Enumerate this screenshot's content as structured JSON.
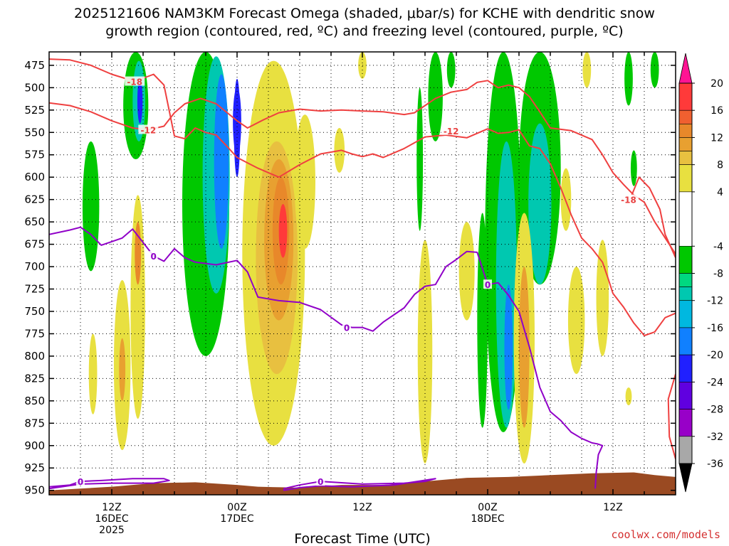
{
  "chart_data": {
    "type": "heatmap",
    "title_line1": "2025121606 NAM3KM Forecast Omega (shaded, μbar/s) for KCHE with dendritic snow",
    "title_line2": "growth region (contoured, red, ºC) and freezing level (contoured, purple, ºC)",
    "xlabel": "Forecast Time (UTC)",
    "credit": "coolwx.com/models",
    "x_range_hours": [
      0,
      60
    ],
    "y_range_hPa": [
      460,
      955
    ],
    "y_ticks": [
      475,
      500,
      525,
      550,
      575,
      600,
      625,
      650,
      675,
      700,
      725,
      750,
      775,
      800,
      825,
      850,
      875,
      900,
      925,
      950
    ],
    "x_ticks": [
      {
        "hour": 6,
        "l1": "12Z",
        "l2": "16DEC",
        "l3": "2025"
      },
      {
        "hour": 18,
        "l1": "00Z",
        "l2": "17DEC",
        "l3": ""
      },
      {
        "hour": 30,
        "l1": "12Z",
        "l2": "",
        "l3": ""
      },
      {
        "hour": 42,
        "l1": "00Z",
        "l2": "18DEC",
        "l3": ""
      },
      {
        "hour": 54,
        "l1": "12Z",
        "l2": "",
        "l3": ""
      }
    ],
    "colorbar": {
      "tick_labels": [
        "20",
        "16",
        "12",
        "8",
        "4",
        "-4",
        "-8",
        "-12",
        "-16",
        "-20",
        "-24",
        "-28",
        "-32",
        "-36"
      ],
      "bins": [
        {
          "from": 16,
          "to": 20,
          "color": "#ff3a3a"
        },
        {
          "from": 14,
          "to": 16,
          "color": "#f06030"
        },
        {
          "from": 12,
          "to": 14,
          "color": "#e8882a"
        },
        {
          "from": 10,
          "to": 12,
          "color": "#e8a030"
        },
        {
          "from": 8,
          "to": 10,
          "color": "#e8c040"
        },
        {
          "from": 4,
          "to": 8,
          "color": "#e8e040"
        },
        {
          "from": -4,
          "to": 4,
          "color": "#ffffff"
        },
        {
          "from": -8,
          "to": -4,
          "color": "#00c800"
        },
        {
          "from": -10,
          "to": -8,
          "color": "#00d880"
        },
        {
          "from": -12,
          "to": -10,
          "color": "#00c8b0"
        },
        {
          "from": -16,
          "to": -12,
          "color": "#00b8e0"
        },
        {
          "from": -20,
          "to": -16,
          "color": "#1080ff"
        },
        {
          "from": -24,
          "to": -20,
          "color": "#2020ff"
        },
        {
          "from": -28,
          "to": -24,
          "color": "#6000e0"
        },
        {
          "from": -32,
          "to": -28,
          "color": "#9800c8"
        },
        {
          "from": -36,
          "to": -32,
          "color": "#a8a8a8"
        }
      ],
      "top_arrow_color": "#ff1493",
      "bottom_arrow_color": "#000000"
    },
    "omega_cells": [
      {
        "h": 4.0,
        "w": 1.6,
        "p1": 560,
        "p2": 705,
        "v": -6
      },
      {
        "h": 8.3,
        "w": 2.4,
        "p1": 460,
        "p2": 580,
        "v": -6
      },
      {
        "h": 8.6,
        "w": 1.2,
        "p1": 470,
        "p2": 560,
        "v": -12
      },
      {
        "h": 8.7,
        "w": 0.5,
        "p1": 490,
        "p2": 540,
        "v": -22
      },
      {
        "h": 15.0,
        "w": 4.5,
        "p1": 460,
        "p2": 800,
        "v": -6
      },
      {
        "h": 16.0,
        "w": 2.6,
        "p1": 465,
        "p2": 730,
        "v": -12
      },
      {
        "h": 16.5,
        "w": 1.4,
        "p1": 485,
        "p2": 680,
        "v": -18
      },
      {
        "h": 18.0,
        "w": 0.6,
        "p1": 490,
        "p2": 600,
        "v": -22
      },
      {
        "h": 18.0,
        "w": 0.8,
        "p1": 500,
        "p2": 575,
        "v": -24
      },
      {
        "h": 20.5,
        "w": 1.2,
        "p1": 610,
        "p2": 720,
        "v": 6
      },
      {
        "h": 21.5,
        "w": 6.0,
        "p1": 470,
        "p2": 900,
        "v": 6
      },
      {
        "h": 21.8,
        "w": 4.0,
        "p1": 560,
        "p2": 820,
        "v": 8
      },
      {
        "h": 22.0,
        "w": 2.8,
        "p1": 580,
        "p2": 760,
        "v": 10
      },
      {
        "h": 22.2,
        "w": 1.6,
        "p1": 600,
        "p2": 720,
        "v": 12
      },
      {
        "h": 22.4,
        "w": 0.8,
        "p1": 630,
        "p2": 690,
        "v": 17
      },
      {
        "h": 8.5,
        "w": 1.4,
        "p1": 620,
        "p2": 870,
        "v": 6
      },
      {
        "h": 8.5,
        "w": 0.6,
        "p1": 650,
        "p2": 720,
        "v": 12
      },
      {
        "h": 7.0,
        "w": 1.6,
        "p1": 715,
        "p2": 905,
        "v": 6
      },
      {
        "h": 7.0,
        "w": 0.6,
        "p1": 780,
        "p2": 850,
        "v": 10
      },
      {
        "h": 4.2,
        "w": 0.8,
        "p1": 775,
        "p2": 865,
        "v": 6
      },
      {
        "h": 24.5,
        "w": 2.0,
        "p1": 530,
        "p2": 680,
        "v": 6
      },
      {
        "h": 27.8,
        "w": 1.0,
        "p1": 545,
        "p2": 595,
        "v": 6
      },
      {
        "h": 36.0,
        "w": 1.4,
        "p1": 670,
        "p2": 920,
        "v": 6
      },
      {
        "h": 40.0,
        "w": 1.5,
        "p1": 650,
        "p2": 760,
        "v": 6
      },
      {
        "h": 35.5,
        "w": 0.6,
        "p1": 500,
        "p2": 660,
        "v": -6
      },
      {
        "h": 41.5,
        "w": 1.0,
        "p1": 640,
        "p2": 880,
        "v": -7
      },
      {
        "h": 43.5,
        "w": 3.5,
        "p1": 460,
        "p2": 885,
        "v": -6
      },
      {
        "h": 43.8,
        "w": 2.0,
        "p1": 560,
        "p2": 880,
        "v": -12
      },
      {
        "h": 44.0,
        "w": 0.8,
        "p1": 720,
        "p2": 860,
        "v": -18
      },
      {
        "h": 47.0,
        "w": 4.0,
        "p1": 460,
        "p2": 720,
        "v": -6
      },
      {
        "h": 47.0,
        "w": 2.2,
        "p1": 540,
        "p2": 720,
        "v": -12
      },
      {
        "h": 37.0,
        "w": 1.4,
        "p1": 460,
        "p2": 560,
        "v": -6
      },
      {
        "h": 45.5,
        "w": 2.0,
        "p1": 640,
        "p2": 920,
        "v": 6
      },
      {
        "h": 45.5,
        "w": 1.0,
        "p1": 700,
        "p2": 880,
        "v": 10
      },
      {
        "h": 50.5,
        "w": 1.6,
        "p1": 700,
        "p2": 820,
        "v": 6
      },
      {
        "h": 53.0,
        "w": 1.2,
        "p1": 670,
        "p2": 800,
        "v": 6
      },
      {
        "h": 49.5,
        "w": 1.0,
        "p1": 590,
        "p2": 660,
        "v": 6
      },
      {
        "h": 51.5,
        "w": 0.8,
        "p1": 460,
        "p2": 500,
        "v": 6
      },
      {
        "h": 55.5,
        "w": 0.8,
        "p1": 460,
        "p2": 520,
        "v": -6
      },
      {
        "h": 58.0,
        "w": 0.8,
        "p1": 460,
        "p2": 500,
        "v": -6
      },
      {
        "h": 56.0,
        "w": 0.6,
        "p1": 570,
        "p2": 610,
        "v": -6
      },
      {
        "h": 38.5,
        "w": 0.8,
        "p1": 460,
        "p2": 500,
        "v": -6
      },
      {
        "h": 30.0,
        "w": 0.8,
        "p1": 460,
        "p2": 490,
        "v": 6
      },
      {
        "h": 55.5,
        "w": 0.6,
        "p1": 835,
        "p2": 855,
        "v": 6
      }
    ],
    "isotherm_minus12": {
      "label": "-12",
      "label_at": [
        [
          9.5,
          547
        ],
        [
          38.5,
          548
        ]
      ],
      "points": [
        [
          0,
          517
        ],
        [
          2,
          520
        ],
        [
          4,
          527
        ],
        [
          6,
          537
        ],
        [
          8,
          545
        ],
        [
          9.5,
          547
        ],
        [
          11,
          543
        ],
        [
          12,
          528
        ],
        [
          13,
          518
        ],
        [
          14.5,
          512
        ],
        [
          16,
          518
        ],
        [
          18,
          537
        ],
        [
          19,
          545
        ],
        [
          20.5,
          536
        ],
        [
          22,
          528
        ],
        [
          24,
          524
        ],
        [
          26,
          526
        ],
        [
          28,
          525
        ],
        [
          30,
          526
        ],
        [
          32,
          527
        ],
        [
          34,
          530
        ],
        [
          35,
          528
        ],
        [
          36,
          520
        ],
        [
          37,
          512
        ],
        [
          38.5,
          505
        ],
        [
          40,
          502
        ],
        [
          41,
          494
        ],
        [
          42,
          492
        ],
        [
          43,
          500
        ],
        [
          44,
          497
        ],
        [
          45,
          500
        ],
        [
          46,
          510
        ],
        [
          47,
          527
        ],
        [
          48,
          545
        ],
        [
          50,
          548
        ],
        [
          52,
          558
        ],
        [
          53,
          575
        ],
        [
          54,
          595
        ],
        [
          55,
          608
        ],
        [
          56,
          620
        ],
        [
          57,
          628
        ],
        [
          58,
          650
        ],
        [
          60,
          686
        ]
      ]
    },
    "isotherm_minus18": {
      "label": "-18",
      "label_at": [
        [
          8.2,
          493
        ],
        [
          55.5,
          625
        ]
      ],
      "points": [
        [
          0,
          468
        ],
        [
          2,
          469
        ],
        [
          4,
          475
        ],
        [
          6,
          485
        ],
        [
          8.2,
          493
        ],
        [
          10,
          485
        ],
        [
          11,
          497
        ],
        [
          12,
          554
        ],
        [
          13,
          557
        ],
        [
          14,
          545
        ],
        [
          15,
          550
        ],
        [
          16,
          553
        ],
        [
          17,
          565
        ],
        [
          18,
          578
        ],
        [
          19,
          584
        ],
        [
          20,
          590
        ],
        [
          22,
          600
        ],
        [
          24,
          586
        ],
        [
          26,
          574
        ],
        [
          28,
          570
        ],
        [
          29,
          574
        ],
        [
          30,
          577
        ],
        [
          31,
          574
        ],
        [
          32,
          578
        ],
        [
          34,
          568
        ],
        [
          36,
          555
        ],
        [
          38,
          553
        ],
        [
          40,
          556
        ],
        [
          42,
          546
        ],
        [
          43,
          551
        ],
        [
          44,
          550
        ],
        [
          45,
          547
        ],
        [
          46,
          565
        ],
        [
          47,
          568
        ],
        [
          48,
          585
        ],
        [
          49,
          612
        ],
        [
          50,
          642
        ],
        [
          51,
          668
        ],
        [
          52,
          680
        ],
        [
          53,
          695
        ],
        [
          53.5,
          712
        ],
        [
          54,
          730
        ],
        [
          55,
          745
        ],
        [
          56,
          763
        ],
        [
          57,
          777
        ],
        [
          58,
          773
        ],
        [
          59,
          757
        ],
        [
          60,
          752
        ]
      ]
    },
    "isotherm_minus12_right": {
      "points": [
        [
          55.8,
          620
        ],
        [
          56.5,
          600
        ],
        [
          57.5,
          612
        ],
        [
          58.5,
          636
        ],
        [
          59,
          664
        ],
        [
          60,
          690
        ]
      ]
    },
    "isotherm_minus12_corner": {
      "points": [
        [
          60,
          820
        ],
        [
          59.3,
          848
        ],
        [
          59.4,
          890
        ],
        [
          60,
          915
        ]
      ]
    },
    "freezing_level": {
      "label": "0",
      "label_at": [
        [
          10,
          688
        ],
        [
          28.5,
          768
        ],
        [
          42,
          720
        ]
      ],
      "points": [
        [
          0,
          664
        ],
        [
          2,
          659
        ],
        [
          3,
          656
        ],
        [
          4,
          664
        ],
        [
          5,
          676
        ],
        [
          7,
          668
        ],
        [
          8,
          658
        ],
        [
          10,
          688
        ],
        [
          11,
          694
        ],
        [
          12,
          680
        ],
        [
          13,
          690
        ],
        [
          14,
          695
        ],
        [
          16,
          698
        ],
        [
          18,
          693
        ],
        [
          19,
          706
        ],
        [
          20,
          734
        ],
        [
          22,
          738
        ],
        [
          24,
          740
        ],
        [
          26,
          748
        ],
        [
          28,
          765
        ],
        [
          29,
          768
        ],
        [
          30,
          768
        ],
        [
          31,
          772
        ],
        [
          32,
          762
        ],
        [
          34,
          746
        ],
        [
          35,
          731
        ],
        [
          36,
          722
        ],
        [
          37,
          720
        ],
        [
          38,
          700
        ],
        [
          39,
          692
        ],
        [
          40,
          683
        ],
        [
          41,
          684
        ],
        [
          42,
          720
        ],
        [
          43,
          718
        ],
        [
          44,
          732
        ],
        [
          45,
          750
        ],
        [
          45.5,
          770
        ],
        [
          46,
          790
        ],
        [
          47,
          835
        ],
        [
          48,
          862
        ],
        [
          49,
          872
        ],
        [
          50,
          885
        ],
        [
          51,
          892
        ],
        [
          52,
          897
        ],
        [
          52.5,
          898
        ],
        [
          53,
          900
        ],
        [
          52.6,
          910
        ],
        [
          52.4,
          930
        ],
        [
          52.3,
          948
        ]
      ]
    },
    "freezing_level_low1": {
      "label": "0",
      "label_at": [
        [
          3.0,
          940
        ]
      ],
      "points": [
        [
          0,
          946
        ],
        [
          2,
          944
        ],
        [
          3,
          940
        ],
        [
          5,
          939
        ],
        [
          8,
          937
        ],
        [
          11,
          937
        ],
        [
          11.5,
          939
        ],
        [
          10,
          942
        ],
        [
          6,
          942
        ],
        [
          3,
          943
        ],
        [
          0,
          948
        ]
      ]
    },
    "freezing_level_low2": {
      "label": "0",
      "label_at": [
        [
          26,
          940
        ]
      ],
      "points": [
        [
          22.5,
          948
        ],
        [
          24,
          944
        ],
        [
          26,
          940
        ],
        [
          30,
          943
        ],
        [
          34,
          942
        ],
        [
          36,
          940
        ],
        [
          37,
          937
        ],
        [
          33,
          944
        ],
        [
          29,
          946
        ],
        [
          26,
          945
        ],
        [
          24,
          947
        ],
        [
          22.5,
          950
        ]
      ]
    },
    "terrain": {
      "color": "#9a4a22",
      "points": [
        [
          0,
          950
        ],
        [
          6,
          946
        ],
        [
          10,
          942
        ],
        [
          14,
          941
        ],
        [
          18,
          944
        ],
        [
          20,
          946
        ],
        [
          24,
          947
        ],
        [
          28,
          944
        ],
        [
          32,
          944
        ],
        [
          36,
          940
        ],
        [
          40,
          936
        ],
        [
          44,
          935
        ],
        [
          48,
          933
        ],
        [
          52,
          931
        ],
        [
          56,
          930
        ],
        [
          58,
          933
        ],
        [
          60,
          935
        ]
      ]
    }
  }
}
